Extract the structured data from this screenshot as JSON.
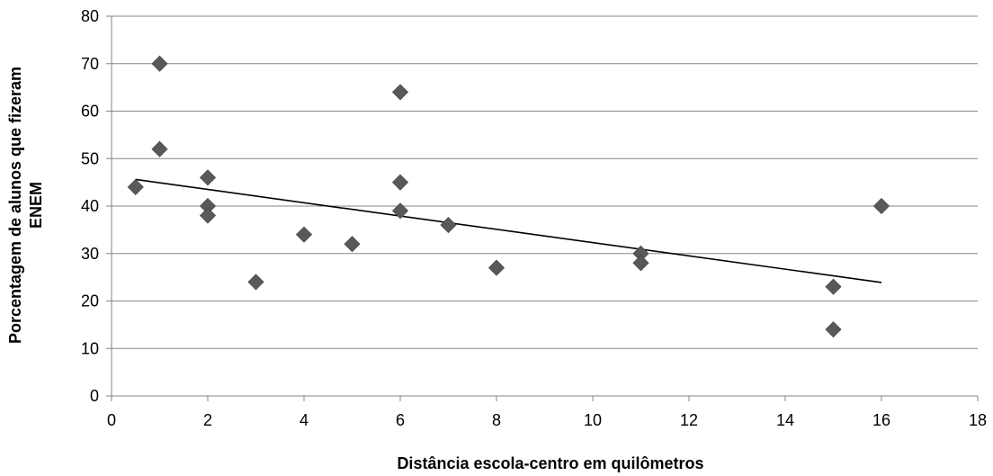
{
  "chart_data": {
    "type": "scatter",
    "title": "",
    "xlabel": "Distância escola-centro em quilômetros",
    "ylabel_lines": [
      "Porcentagem de alunos que fizeram",
      "ENEM"
    ],
    "xlim": [
      0,
      18
    ],
    "ylim": [
      0,
      80
    ],
    "x_ticks": [
      0,
      2,
      4,
      6,
      8,
      10,
      12,
      14,
      16,
      18
    ],
    "y_ticks": [
      0,
      10,
      20,
      30,
      40,
      50,
      60,
      70,
      80
    ],
    "grid": "horizontal",
    "legend": "none",
    "points": [
      {
        "x": 0.5,
        "y": 44
      },
      {
        "x": 1,
        "y": 70
      },
      {
        "x": 1,
        "y": 52
      },
      {
        "x": 2,
        "y": 46
      },
      {
        "x": 2,
        "y": 40
      },
      {
        "x": 2,
        "y": 38
      },
      {
        "x": 3,
        "y": 24
      },
      {
        "x": 4,
        "y": 34
      },
      {
        "x": 5,
        "y": 32
      },
      {
        "x": 6,
        "y": 64
      },
      {
        "x": 6,
        "y": 45
      },
      {
        "x": 6,
        "y": 39
      },
      {
        "x": 7,
        "y": 36
      },
      {
        "x": 8,
        "y": 27
      },
      {
        "x": 11,
        "y": 30
      },
      {
        "x": 11,
        "y": 28
      },
      {
        "x": 15,
        "y": 23
      },
      {
        "x": 15,
        "y": 14
      },
      {
        "x": 16,
        "y": 40
      }
    ],
    "trendline": {
      "type": "linear",
      "x": [
        0.5,
        16
      ],
      "y": [
        45.6,
        23.9
      ]
    },
    "colors": {
      "marker": "#595959",
      "trendline": "#000000",
      "grid": "#868686",
      "axis": "#868686"
    }
  }
}
